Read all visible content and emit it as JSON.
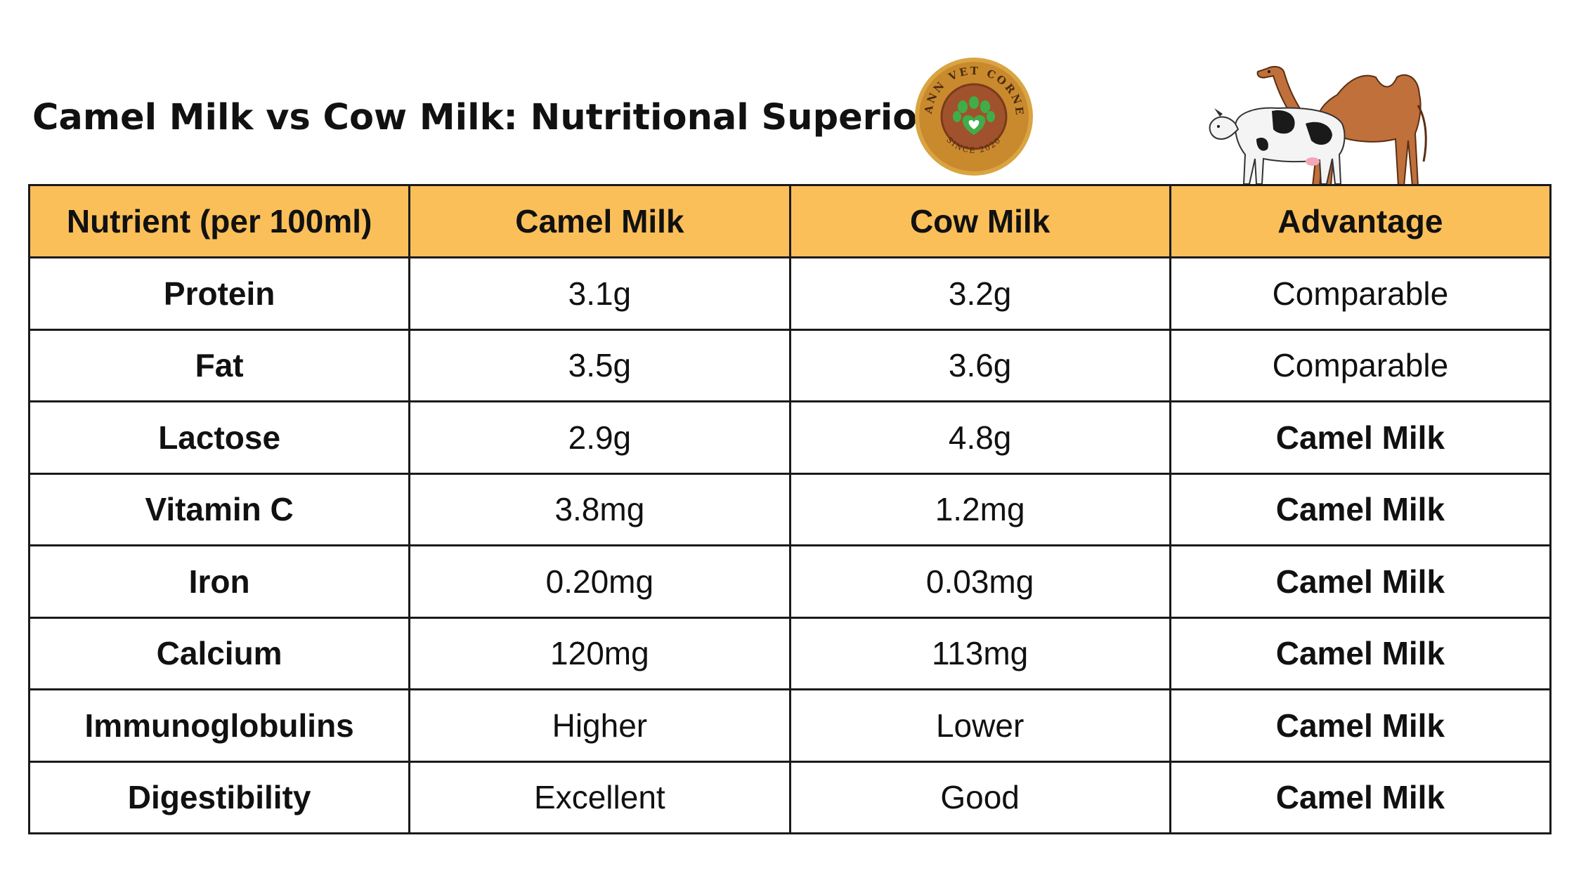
{
  "title": "Camel Milk vs Cow Milk: Nutritional Superiority",
  "logo": {
    "text_top": "MANN VET CORNER",
    "text_bottom": "SINCE 2020",
    "icon": "paw-heart-icon"
  },
  "colors": {
    "header_bg": "#fbbf5a",
    "logo_ring": "#b07a2f",
    "logo_center": "#a0522d",
    "paw_green": "#3fae49"
  },
  "table": {
    "headers": [
      "Nutrient (per 100ml)",
      "Camel Milk",
      "Cow Milk",
      "Advantage"
    ],
    "rows": [
      {
        "nutrient": "Protein",
        "camel": "3.1g",
        "cow": "3.2g",
        "advantage": "Comparable"
      },
      {
        "nutrient": "Fat",
        "camel": "3.5g",
        "cow": "3.6g",
        "advantage": "Comparable"
      },
      {
        "nutrient": "Lactose",
        "camel": "2.9g",
        "cow": "4.8g",
        "advantage": "Camel Milk"
      },
      {
        "nutrient": "Vitamin C",
        "camel": "3.8mg",
        "cow": "1.2mg",
        "advantage": "Camel Milk"
      },
      {
        "nutrient": "Iron",
        "camel": "0.20mg",
        "cow": "0.03mg",
        "advantage": "Camel Milk"
      },
      {
        "nutrient": "Calcium",
        "camel": "120mg",
        "cow": "113mg",
        "advantage": "Camel Milk"
      },
      {
        "nutrient": "Immunoglobulins",
        "camel": "Higher",
        "cow": "Lower",
        "advantage": "Camel Milk"
      },
      {
        "nutrient": "Digestibility",
        "camel": "Excellent",
        "cow": "Good",
        "advantage": "Camel Milk"
      }
    ]
  }
}
